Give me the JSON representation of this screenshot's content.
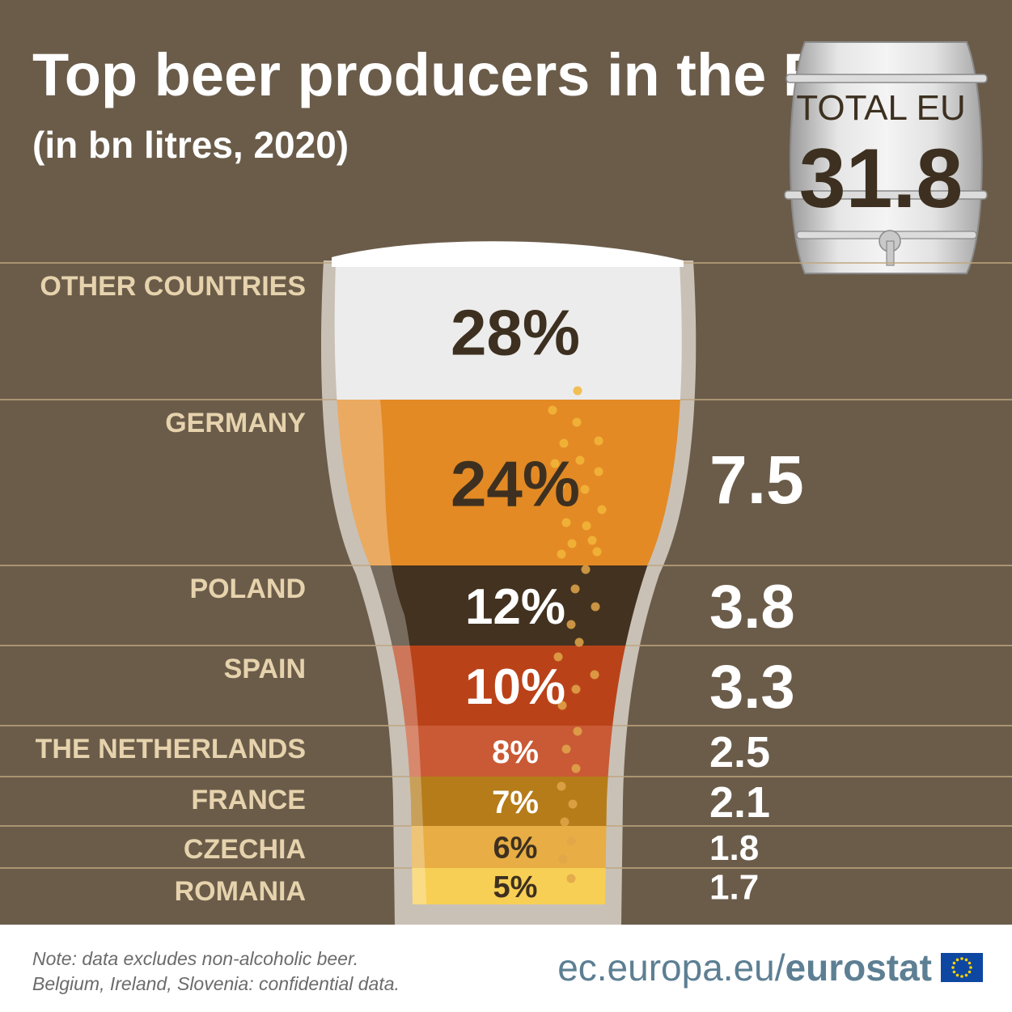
{
  "header": {
    "title": "Top beer producers in the EU",
    "subtitle": "(in bn litres, 2020)"
  },
  "total": {
    "label": "TOTAL EU",
    "value": "31.8"
  },
  "chart_data": {
    "type": "bar",
    "unit": "bn litres",
    "categories": [
      "OTHER COUNTRIES",
      "GERMANY",
      "POLAND",
      "SPAIN",
      "THE NETHERLANDS",
      "FRANCE",
      "CZECHIA",
      "ROMANIA"
    ],
    "shares_pct": [
      "28%",
      "24%",
      "12%",
      "10%",
      "8%",
      "7%",
      "6%",
      "5%"
    ],
    "values": [
      null,
      7.5,
      3.8,
      3.3,
      2.5,
      2.1,
      1.8,
      1.7
    ],
    "value_labels": [
      "",
      "7.5",
      "3.8",
      "3.3",
      "2.5",
      "2.1",
      "1.8",
      "1.7"
    ],
    "colors": [
      "#ececec",
      "#e38a25",
      "#42321f",
      "#ba4219",
      "#c95a35",
      "#b57c19",
      "#e8ad44",
      "#f7cf55"
    ],
    "pct_text_colors": [
      "#3d3020",
      "#3d3020",
      "#ffffff",
      "#ffffff",
      "#ffffff",
      "#ffffff",
      "#3d3020",
      "#3d3020"
    ],
    "total_eu": 31.8
  },
  "footer": {
    "note_line1": "Note: data excludes non-alcoholic beer.",
    "note_line2": "Belgium, Ireland, Slovenia: confidential data.",
    "url_prefix": "ec.europa.eu/",
    "url_brand": "eurostat"
  },
  "colors": {
    "background": "#6b5c4a",
    "label": "#e6d3ad",
    "separator": "#bfa67e",
    "glass": "#c9c1b6",
    "brand_blue": "#0e47a1",
    "brand_text": "#5d7f93"
  }
}
